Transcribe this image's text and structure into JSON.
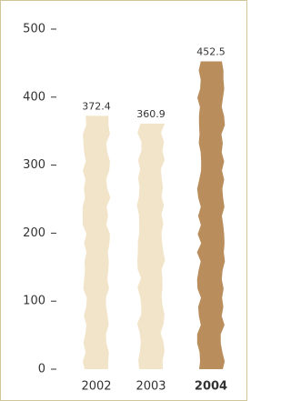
{
  "chart_data": {
    "type": "bar",
    "categories": [
      "2002",
      "2003",
      "2004"
    ],
    "values": [
      372.4,
      360.9,
      452.5
    ],
    "colors": [
      "#f2e4c8",
      "#f2e4c8",
      "#b98d5c"
    ],
    "highlight": 2,
    "ylim": [
      0,
      500
    ],
    "yticks": [
      0,
      100,
      200,
      300,
      400,
      500
    ]
  }
}
